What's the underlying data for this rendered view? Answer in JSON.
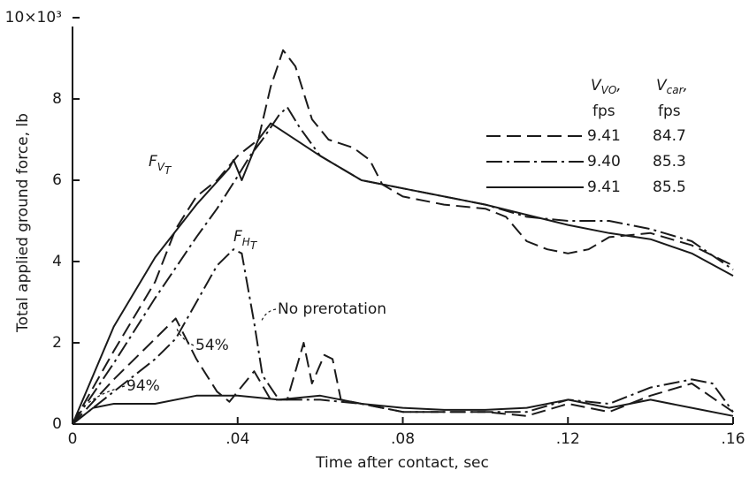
{
  "chart_data": {
    "type": "line",
    "xlabel": "Time after contact, sec",
    "ylabel": "Total applied ground force, lb",
    "xlim": [
      0,
      0.16
    ],
    "ylim": [
      0,
      10
    ],
    "xticks": [
      0,
      {
        "value": 0.04,
        "label": ".04"
      },
      {
        "value": 0.08,
        "label": ".08"
      },
      {
        "value": 0.12,
        "label": ".12"
      },
      {
        "value": 0.16,
        "label": ".16"
      }
    ],
    "yticks": [
      0,
      2,
      4,
      6,
      8,
      {
        "value": 10,
        "label": "10×10³"
      }
    ],
    "color": "#1a1a1a",
    "series": [
      {
        "dash": "dashed",
        "x": [
          0,
          0.01,
          0.02,
          0.025,
          0.03,
          0.035,
          0.04,
          0.045,
          0.048,
          0.051,
          0.054,
          0.058,
          0.062,
          0.068,
          0.072,
          0.075,
          0.08,
          0.09,
          0.1,
          0.105,
          0.11,
          0.115,
          0.12,
          0.125,
          0.13,
          0.14,
          0.15,
          0.16
        ],
        "values": [
          0,
          1.8,
          3.5,
          4.8,
          5.6,
          6.0,
          6.6,
          7.0,
          8.3,
          9.2,
          8.8,
          7.5,
          7.0,
          6.8,
          6.5,
          5.9,
          5.6,
          5.4,
          5.3,
          5.1,
          4.5,
          4.3,
          4.2,
          4.3,
          4.6,
          4.7,
          4.4,
          3.9
        ]
      },
      {
        "dash": "dashdot",
        "x": [
          0,
          0.01,
          0.02,
          0.03,
          0.035,
          0.04,
          0.043,
          0.046,
          0.05,
          0.052,
          0.055,
          0.06,
          0.07,
          0.08,
          0.09,
          0.1,
          0.11,
          0.12,
          0.13,
          0.14,
          0.15,
          0.16
        ],
        "values": [
          0,
          1.5,
          3.1,
          4.6,
          5.3,
          6.1,
          6.6,
          7.0,
          7.6,
          7.8,
          7.3,
          6.6,
          6.0,
          5.8,
          5.6,
          5.4,
          5.1,
          5.0,
          5.0,
          4.8,
          4.5,
          3.8
        ]
      },
      {
        "dash": "solid",
        "x": [
          0,
          0.01,
          0.02,
          0.03,
          0.038,
          0.039,
          0.041,
          0.045,
          0.048,
          0.06,
          0.07,
          0.08,
          0.09,
          0.1,
          0.11,
          0.12,
          0.13,
          0.14,
          0.15,
          0.16
        ],
        "values": [
          0,
          2.4,
          4.1,
          5.4,
          6.3,
          6.5,
          6.0,
          7.0,
          7.4,
          6.6,
          6.0,
          5.8,
          5.6,
          5.4,
          5.15,
          4.9,
          4.7,
          4.55,
          4.2,
          3.65
        ]
      },
      {
        "dash": "dashed",
        "x": [
          0,
          0.01,
          0.02,
          0.025,
          0.03,
          0.035,
          0.038,
          0.044,
          0.048,
          0.052,
          0.056,
          0.058,
          0.061,
          0.063,
          0.065,
          0.07,
          0.08,
          0.09,
          0.1,
          0.11,
          0.12,
          0.13,
          0.14,
          0.15,
          0.16
        ],
        "values": [
          0,
          1.1,
          2.1,
          2.6,
          1.6,
          0.8,
          0.55,
          1.3,
          0.6,
          0.6,
          2.0,
          1.0,
          1.7,
          1.6,
          0.6,
          0.5,
          0.3,
          0.3,
          0.3,
          0.2,
          0.5,
          0.3,
          0.7,
          1.0,
          0.3
        ]
      },
      {
        "dash": "dashdot",
        "x": [
          0,
          0.01,
          0.02,
          0.025,
          0.03,
          0.035,
          0.039,
          0.041,
          0.044,
          0.046,
          0.05,
          0.06,
          0.07,
          0.08,
          0.09,
          0.1,
          0.11,
          0.12,
          0.13,
          0.14,
          0.15,
          0.155,
          0.16
        ],
        "values": [
          0,
          0.8,
          1.6,
          2.1,
          3.0,
          3.9,
          4.3,
          4.2,
          2.5,
          1.2,
          0.6,
          0.6,
          0.5,
          0.3,
          0.3,
          0.3,
          0.3,
          0.6,
          0.5,
          0.9,
          1.1,
          1.0,
          0.3
        ]
      },
      {
        "dash": "solid",
        "x": [
          0,
          0.005,
          0.01,
          0.02,
          0.03,
          0.04,
          0.05,
          0.06,
          0.07,
          0.08,
          0.09,
          0.1,
          0.11,
          0.12,
          0.13,
          0.14,
          0.15,
          0.16
        ],
        "values": [
          0,
          0.4,
          0.5,
          0.5,
          0.7,
          0.7,
          0.6,
          0.7,
          0.5,
          0.4,
          0.35,
          0.35,
          0.4,
          0.6,
          0.4,
          0.6,
          0.4,
          0.2
        ]
      }
    ],
    "legend": {
      "columns": [
        {
          "base": "V",
          "sub": "VO",
          "tail": ","
        },
        {
          "base": "V",
          "sub": "car",
          "tail": ","
        }
      ],
      "units": [
        "fps",
        "fps"
      ],
      "rows": [
        [
          "9.41",
          "84.7"
        ],
        [
          "9.40",
          "85.3"
        ],
        [
          "9.41",
          "85.5"
        ]
      ]
    },
    "annotations": [
      {
        "base": "F",
        "sub": "V",
        "subsub": "T"
      },
      {
        "base": "F",
        "sub": "H",
        "subsub": "T"
      },
      {
        "text": "No prerotation"
      },
      {
        "text": "54%"
      },
      {
        "text": "94%"
      }
    ]
  }
}
